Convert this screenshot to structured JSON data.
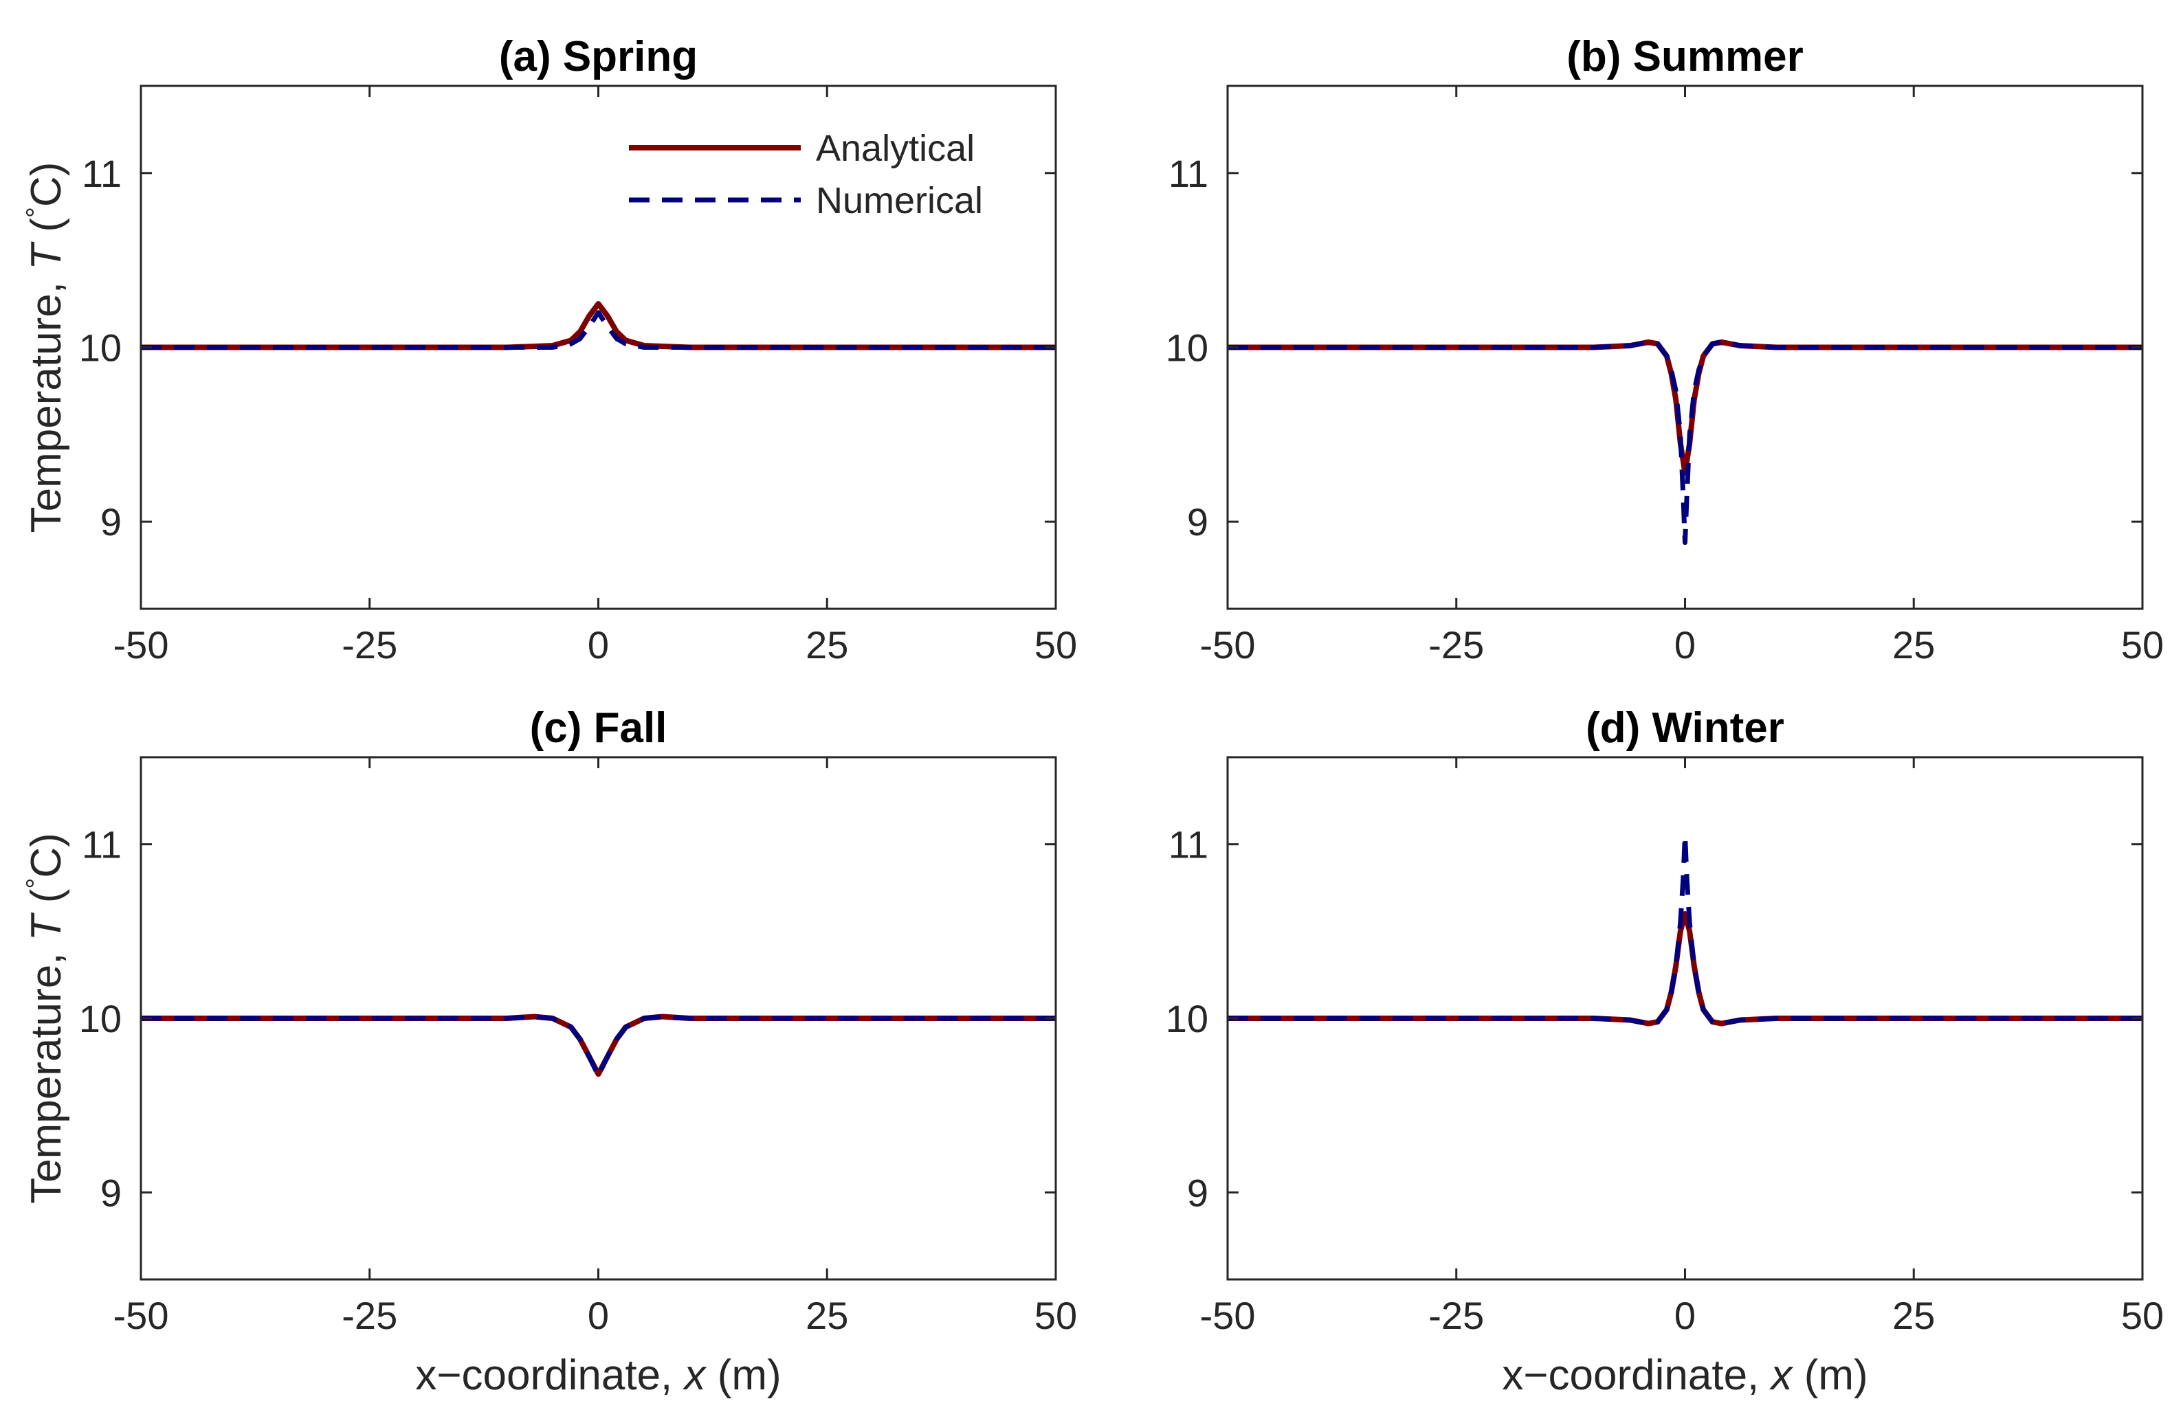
{
  "figure": {
    "ylabel_prefix": "Temperature, ",
    "ylabel_var": "T",
    "ylabel_unit_open": " (",
    "ylabel_degree": "°",
    "ylabel_unit_close": "C)",
    "xlabel_prefix": "x−coordinate, ",
    "xlabel_var": "x",
    "xlabel_unit": " (m)",
    "legend": [
      {
        "label": "Analytical",
        "color": "#7f0000",
        "style": "solid"
      },
      {
        "label": "Numerical",
        "color": "#00007f",
        "style": "dashed"
      }
    ]
  },
  "chart_data": [
    {
      "type": "line",
      "title": "(a) Spring",
      "xlabel": "x−coordinate, x (m)",
      "ylabel": "Temperature, T (°C)",
      "xlim": [
        -50,
        50
      ],
      "ylim": [
        8.5,
        11.5
      ],
      "xticks": [
        -50,
        -25,
        0,
        25,
        50
      ],
      "xtick_labels": [
        "-50",
        "-25",
        "0",
        "25",
        "50"
      ],
      "yticks": [
        9,
        10,
        11
      ],
      "ytick_labels": [
        "9",
        "10",
        "11"
      ],
      "legend_position": "top-right",
      "series": [
        {
          "name": "Analytical",
          "color": "#7f0000",
          "style": "solid",
          "x": [
            -50,
            -10,
            -5,
            -3,
            -2,
            -1,
            0,
            1,
            2,
            3,
            5,
            10,
            50
          ],
          "y": [
            10.0,
            10.0,
            10.01,
            10.04,
            10.09,
            10.18,
            10.25,
            10.18,
            10.09,
            10.04,
            10.01,
            10.0,
            10.0
          ]
        },
        {
          "name": "Numerical",
          "color": "#00007f",
          "style": "dashed",
          "x": [
            -50,
            -10,
            -5,
            -3,
            -2,
            -1,
            0,
            1,
            2,
            3,
            5,
            10,
            50
          ],
          "y": [
            10.0,
            10.0,
            10.0,
            10.02,
            10.05,
            10.12,
            10.2,
            10.12,
            10.05,
            10.02,
            10.0,
            10.0,
            10.0
          ]
        }
      ]
    },
    {
      "type": "line",
      "title": "(b) Summer",
      "xlabel": "x−coordinate, x (m)",
      "ylabel": "Temperature, T (°C)",
      "xlim": [
        -50,
        50
      ],
      "ylim": [
        8.5,
        11.5
      ],
      "xticks": [
        -50,
        -25,
        0,
        25,
        50
      ],
      "xtick_labels": [
        "-50",
        "-25",
        "0",
        "25",
        "50"
      ],
      "yticks": [
        9,
        10,
        11
      ],
      "ytick_labels": [
        "9",
        "10",
        "11"
      ],
      "series": [
        {
          "name": "Analytical",
          "color": "#7f0000",
          "style": "solid",
          "x": [
            -50,
            -10,
            -6,
            -4,
            -3,
            -2,
            -1.5,
            -1,
            -0.5,
            0,
            0.5,
            1,
            1.5,
            2,
            3,
            4,
            6,
            10,
            50
          ],
          "y": [
            10.0,
            10.0,
            10.01,
            10.03,
            10.02,
            9.95,
            9.85,
            9.7,
            9.45,
            9.28,
            9.45,
            9.7,
            9.85,
            9.95,
            10.02,
            10.03,
            10.01,
            10.0,
            10.0
          ]
        },
        {
          "name": "Numerical",
          "color": "#00007f",
          "style": "dashed",
          "x": [
            -50,
            -10,
            -6,
            -4,
            -3,
            -2,
            -1.5,
            -1,
            -0.5,
            -0.2,
            0,
            0.2,
            0.5,
            1,
            1.5,
            2,
            3,
            4,
            6,
            10,
            50
          ],
          "y": [
            10.0,
            10.0,
            10.01,
            10.03,
            10.02,
            9.95,
            9.87,
            9.75,
            9.5,
            9.15,
            8.88,
            9.15,
            9.5,
            9.75,
            9.87,
            9.95,
            10.02,
            10.03,
            10.01,
            10.0,
            10.0
          ]
        }
      ]
    },
    {
      "type": "line",
      "title": "(c) Fall",
      "xlabel": "x−coordinate, x (m)",
      "ylabel": "Temperature, T (°C)",
      "xlim": [
        -50,
        50
      ],
      "ylim": [
        8.5,
        11.5
      ],
      "xticks": [
        -50,
        -25,
        0,
        25,
        50
      ],
      "xtick_labels": [
        "-50",
        "-25",
        "0",
        "25",
        "50"
      ],
      "yticks": [
        9,
        10,
        11
      ],
      "ytick_labels": [
        "9",
        "10",
        "11"
      ],
      "series": [
        {
          "name": "Analytical",
          "color": "#7f0000",
          "style": "solid",
          "x": [
            -50,
            -10,
            -7,
            -5,
            -3,
            -2,
            -1,
            0,
            1,
            2,
            3,
            5,
            7,
            10,
            50
          ],
          "y": [
            10.0,
            10.0,
            10.01,
            10.0,
            9.95,
            9.88,
            9.78,
            9.68,
            9.78,
            9.88,
            9.95,
            10.0,
            10.01,
            10.0,
            10.0
          ]
        },
        {
          "name": "Numerical",
          "color": "#00007f",
          "style": "dashed",
          "x": [
            -50,
            -10,
            -7,
            -5,
            -3,
            -2,
            -1,
            0,
            1,
            2,
            3,
            5,
            7,
            10,
            50
          ],
          "y": [
            10.0,
            10.0,
            10.01,
            10.0,
            9.95,
            9.88,
            9.78,
            9.67,
            9.78,
            9.88,
            9.95,
            10.0,
            10.01,
            10.0,
            10.0
          ]
        }
      ]
    },
    {
      "type": "line",
      "title": "(d) Winter",
      "xlabel": "x−coordinate, x (m)",
      "ylabel": "Temperature, T (°C)",
      "xlim": [
        -50,
        50
      ],
      "ylim": [
        8.5,
        11.5
      ],
      "xticks": [
        -50,
        -25,
        0,
        25,
        50
      ],
      "xtick_labels": [
        "-50",
        "-25",
        "0",
        "25",
        "50"
      ],
      "yticks": [
        9,
        10,
        11
      ],
      "ytick_labels": [
        "9",
        "10",
        "11"
      ],
      "series": [
        {
          "name": "Analytical",
          "color": "#7f0000",
          "style": "solid",
          "x": [
            -50,
            -10,
            -6,
            -4,
            -3,
            -2,
            -1.5,
            -1,
            -0.5,
            0,
            0.5,
            1,
            1.5,
            2,
            3,
            4,
            6,
            10,
            50
          ],
          "y": [
            10.0,
            10.0,
            9.99,
            9.97,
            9.98,
            10.05,
            10.15,
            10.3,
            10.5,
            10.6,
            10.5,
            10.3,
            10.15,
            10.05,
            9.98,
            9.97,
            9.99,
            10.0,
            10.0
          ]
        },
        {
          "name": "Numerical",
          "color": "#00007f",
          "style": "dashed",
          "x": [
            -50,
            -10,
            -6,
            -4,
            -3,
            -2,
            -1.5,
            -1,
            -0.5,
            -0.2,
            0,
            0.2,
            0.5,
            1,
            1.5,
            2,
            3,
            4,
            6,
            10,
            50
          ],
          "y": [
            10.0,
            10.0,
            9.99,
            9.97,
            9.98,
            10.05,
            10.15,
            10.3,
            10.55,
            10.8,
            11.05,
            10.8,
            10.55,
            10.3,
            10.15,
            10.05,
            9.98,
            9.97,
            9.99,
            10.0,
            10.0
          ]
        }
      ]
    }
  ]
}
